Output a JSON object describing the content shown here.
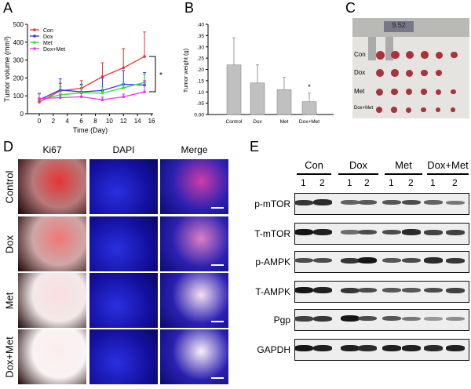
{
  "panels": {
    "a": "A",
    "b": "B",
    "c": "C",
    "d": "D",
    "e": "E"
  },
  "chart_data": [
    {
      "type": "line",
      "xlabel": "Time (Day)",
      "ylabel": "Tumor volume (mm³)",
      "xlim": [
        -2,
        16
      ],
      "ylim": [
        0,
        500
      ],
      "xticks": [
        0,
        2,
        4,
        6,
        8,
        10,
        12,
        14,
        16
      ],
      "yticks": [
        0,
        100,
        200,
        300,
        400,
        500
      ],
      "x": [
        0,
        3,
        6,
        9,
        12,
        15
      ],
      "legend": "top-left",
      "annotation": "*",
      "series": [
        {
          "name": "Con",
          "color": "#ee3333",
          "values": [
            65,
            128,
            142,
            207,
            257,
            320
          ],
          "error_upper": [
            85,
            170,
            185,
            285,
            365,
            457
          ]
        },
        {
          "name": "Dox",
          "color": "#3333ee",
          "values": [
            78,
            133,
            122,
            130,
            165,
            160
          ],
          "error_upper": [
            115,
            195,
            165,
            200,
            242,
            230
          ]
        },
        {
          "name": "Met",
          "color": "#33dd33",
          "values": [
            80,
            105,
            117,
            115,
            145,
            175
          ],
          "error_upper": [
            115,
            150,
            160,
            150,
            170,
            220
          ]
        },
        {
          "name": "Dox+Met",
          "color": "#ee33ee",
          "values": [
            85,
            90,
            95,
            78,
            95,
            122
          ],
          "error_upper": [
            110,
            110,
            115,
            93,
            110,
            185
          ]
        }
      ]
    },
    {
      "type": "bar",
      "ylabel": "Tumor weight (g)",
      "ylim": [
        0,
        0.4
      ],
      "yticks": [
        "0.00",
        ".05",
        ".10",
        ".15",
        ".20",
        ".25",
        ".30",
        ".35",
        ".40"
      ],
      "categories": [
        "Control",
        "Dox",
        "Met",
        "Dox+Met"
      ],
      "values": [
        0.22,
        0.14,
        0.11,
        0.057
      ],
      "error_upper": [
        0.34,
        0.22,
        0.165,
        0.095
      ],
      "bar_color": "#c0c0c0",
      "annotation": "*"
    }
  ],
  "photo": {
    "rows": [
      "Con",
      "Dox",
      "Met",
      "Dox+Met"
    ],
    "caliper_reading": "9.52"
  },
  "ihc": {
    "columns": [
      "Ki67",
      "DAPI",
      "Merge"
    ],
    "rows": [
      "Control",
      "Dox",
      "Met",
      "Dox+Met"
    ]
  },
  "western": {
    "groups": [
      "Con",
      "Dox",
      "Met",
      "Dox+Met"
    ],
    "lanes": [
      "1",
      "2",
      "1",
      "2",
      "1",
      "2",
      "1",
      "2"
    ],
    "proteins": [
      "p-mTOR",
      "T-mTOR",
      "p-AMPK",
      "T-AMPK",
      "Pgp",
      "GAPDH"
    ],
    "band_intensity": [
      [
        0.8,
        0.85,
        0.6,
        0.65,
        0.65,
        0.7,
        0.6,
        0.5
      ],
      [
        0.95,
        0.9,
        0.55,
        0.7,
        0.7,
        0.85,
        0.75,
        0.75
      ],
      [
        0.7,
        0.7,
        0.8,
        0.95,
        0.65,
        0.7,
        0.85,
        0.8
      ],
      [
        0.95,
        0.9,
        0.8,
        0.7,
        0.65,
        0.65,
        0.7,
        0.75
      ],
      [
        0.75,
        0.8,
        0.95,
        0.7,
        0.65,
        0.5,
        0.35,
        0.4
      ],
      [
        0.95,
        0.9,
        0.9,
        0.85,
        0.9,
        0.9,
        0.85,
        0.9
      ]
    ]
  }
}
